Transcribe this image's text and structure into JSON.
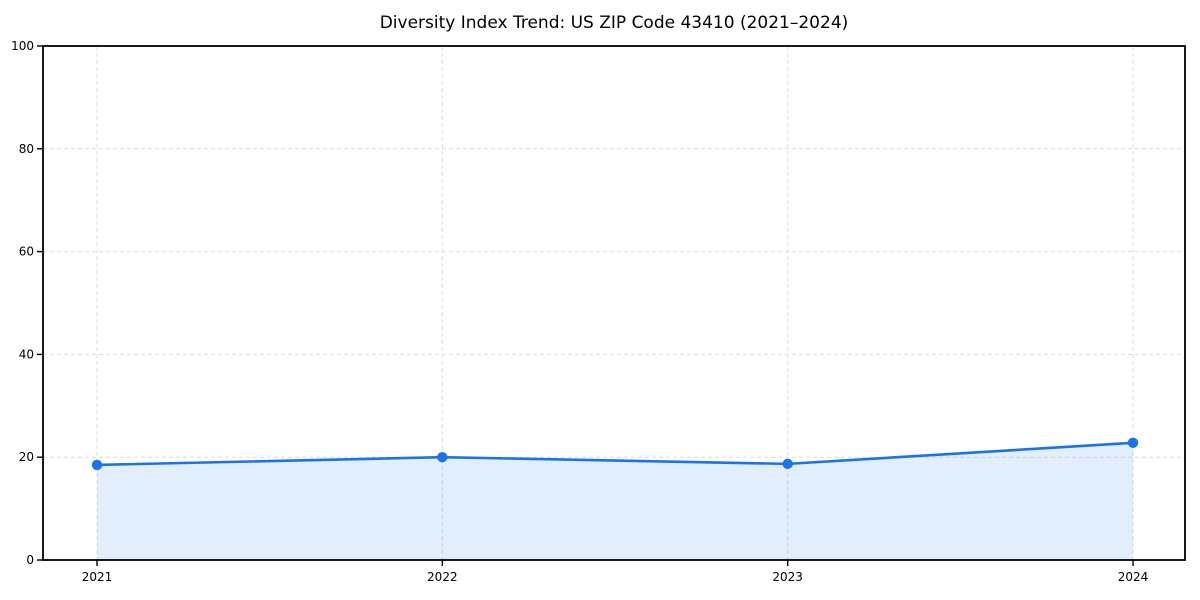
{
  "chart_data": {
    "type": "area",
    "title": "Diversity Index Trend: US ZIP Code 43410 (2021–2024)",
    "categories": [
      "2021",
      "2022",
      "2023",
      "2024"
    ],
    "series": [
      {
        "name": "Diversity Index",
        "values": [
          18.5,
          20.0,
          18.7,
          22.8
        ]
      }
    ],
    "xlabel": "",
    "ylabel": "",
    "ylim": [
      0,
      100
    ],
    "yticks": [
      0,
      20,
      40,
      60,
      80,
      100
    ],
    "grid": true,
    "grid_style": "dashed",
    "legend_position": "none",
    "colors": {
      "line": "#1a73e8",
      "marker": "#1a73e8",
      "fill": "rgba(26, 115, 232, 0.12)",
      "grid": "#dcdcdc",
      "axis": "#000000",
      "text": "#000000",
      "background": "#ffffff"
    }
  }
}
